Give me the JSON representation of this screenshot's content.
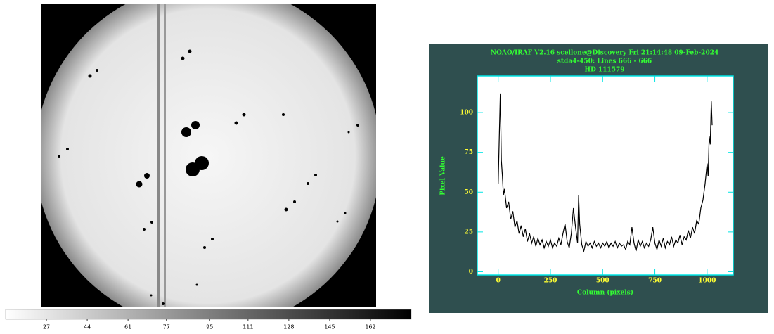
{
  "colorbar": {
    "range": [
      10,
      179
    ],
    "ticks": [
      27,
      44,
      61,
      77,
      95,
      111,
      128,
      145,
      162
    ]
  },
  "chart_data": {
    "type": "line",
    "title": "NOAO/IRAF V2.16 scellone@Discovery Fri 21:14:48 09-Feb-2024",
    "subtitle": "stda4-450: Lines 666 - 666",
    "object": "HD 111579",
    "x_label": "Column (pixels)",
    "y_label": "Pixel Value",
    "xlim": [
      -100,
      1125
    ],
    "ylim": [
      -2,
      123
    ],
    "xticks": [
      0,
      250,
      500,
      750,
      1000
    ],
    "yticks": [
      0,
      25,
      50,
      75,
      100
    ],
    "x": [
      0,
      5,
      10,
      15,
      20,
      25,
      30,
      40,
      50,
      60,
      70,
      80,
      90,
      100,
      110,
      120,
      130,
      140,
      150,
      160,
      170,
      180,
      190,
      200,
      210,
      220,
      230,
      240,
      250,
      260,
      270,
      280,
      290,
      300,
      310,
      320,
      330,
      340,
      350,
      360,
      370,
      380,
      385,
      390,
      400,
      410,
      420,
      430,
      440,
      450,
      460,
      470,
      480,
      490,
      500,
      510,
      520,
      530,
      540,
      550,
      560,
      570,
      580,
      590,
      600,
      610,
      620,
      630,
      640,
      650,
      660,
      670,
      680,
      690,
      700,
      710,
      720,
      730,
      740,
      750,
      760,
      770,
      780,
      790,
      800,
      810,
      820,
      830,
      840,
      850,
      860,
      870,
      880,
      890,
      900,
      910,
      920,
      930,
      940,
      950,
      960,
      970,
      980,
      990,
      1000,
      1005,
      1010,
      1015,
      1020,
      1024
    ],
    "series": [
      {
        "color": "#000000",
        "values": [
          55,
          84,
          112,
          70,
          60,
          48,
          52,
          40,
          44,
          33,
          38,
          28,
          32,
          24,
          29,
          22,
          27,
          19,
          24,
          18,
          22,
          16,
          21,
          17,
          20,
          15,
          19,
          16,
          20,
          15,
          18,
          16,
          21,
          17,
          24,
          30,
          19,
          15,
          24,
          40,
          28,
          18,
          48,
          30,
          17,
          13,
          19,
          16,
          18,
          15,
          19,
          16,
          18,
          15,
          18,
          16,
          19,
          15,
          18,
          16,
          19,
          15,
          18,
          16,
          17,
          14,
          19,
          17,
          28,
          18,
          13,
          20,
          16,
          19,
          15,
          18,
          16,
          20,
          28,
          18,
          14,
          20,
          16,
          21,
          15,
          19,
          17,
          22,
          16,
          20,
          18,
          23,
          17,
          22,
          20,
          26,
          21,
          28,
          24,
          32,
          30,
          40,
          45,
          55,
          68,
          60,
          85,
          80,
          107,
          92
        ]
      }
    ]
  }
}
